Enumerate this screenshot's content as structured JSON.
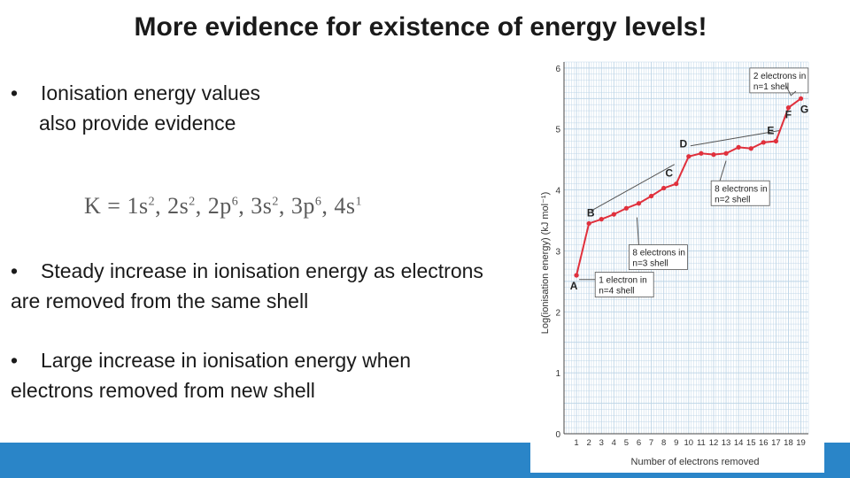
{
  "slide": {
    "title": "More evidence for existence of energy levels!",
    "bullet1_line1": "Ionisation energy values",
    "bullet1_line2": "also provide evidence",
    "bullet_symbol": "•",
    "bullet2": "Steady increase in ionisation energy as electrons are removed from the same shell",
    "bullet3": "Large increase in ionisation energy when electrons removed from new shell",
    "formula_prefix": "K = ",
    "formula_terms": [
      {
        "base": "1s",
        "sup": "2",
        "sep": ", "
      },
      {
        "base": "2s",
        "sup": "2",
        "sep": ", "
      },
      {
        "base": "2p",
        "sup": "6",
        "sep": ", "
      },
      {
        "base": "3s",
        "sup": "2",
        "sep": ", "
      },
      {
        "base": "3p",
        "sup": "6",
        "sep": ", "
      },
      {
        "base": "4s",
        "sup": "1",
        "sep": ""
      }
    ],
    "accent_color": "#2a85c8"
  },
  "chart_data": {
    "type": "line",
    "xlabel": "Number of electrons removed",
    "ylabel": "Log(ionisation energy) (kJ mol⁻¹)",
    "x": [
      1,
      2,
      3,
      4,
      5,
      6,
      7,
      8,
      9,
      10,
      11,
      12,
      13,
      14,
      15,
      16,
      17,
      18,
      19
    ],
    "y": [
      2.6,
      3.45,
      3.52,
      3.6,
      3.7,
      3.78,
      3.9,
      4.03,
      4.1,
      4.55,
      4.6,
      4.58,
      4.6,
      4.7,
      4.68,
      4.78,
      4.8,
      5.35,
      5.5
    ],
    "xlim": [
      0,
      19.6
    ],
    "ylim": [
      0,
      6.1
    ],
    "yticks": [
      0,
      1,
      2,
      3,
      4,
      5,
      6
    ],
    "grid": true,
    "line_color": "#e0303c",
    "point_labels": [
      {
        "x": 1,
        "label": "A"
      },
      {
        "x": 2,
        "label": "B"
      },
      {
        "x": 9,
        "label": "C"
      },
      {
        "x": 10,
        "label": "D"
      },
      {
        "x": 17,
        "label": "E"
      },
      {
        "x": 18,
        "label": "F"
      },
      {
        "x": 19,
        "label": "G"
      }
    ],
    "annotations": [
      {
        "line1": "1 electron in",
        "line2": "n=4 shell"
      },
      {
        "line1": "8 electrons in",
        "line2": "n=3 shell"
      },
      {
        "line1": "8 electrons in",
        "line2": "n=2 shell"
      },
      {
        "line1": "2 electrons in",
        "line2": "n=1 shell"
      }
    ]
  }
}
